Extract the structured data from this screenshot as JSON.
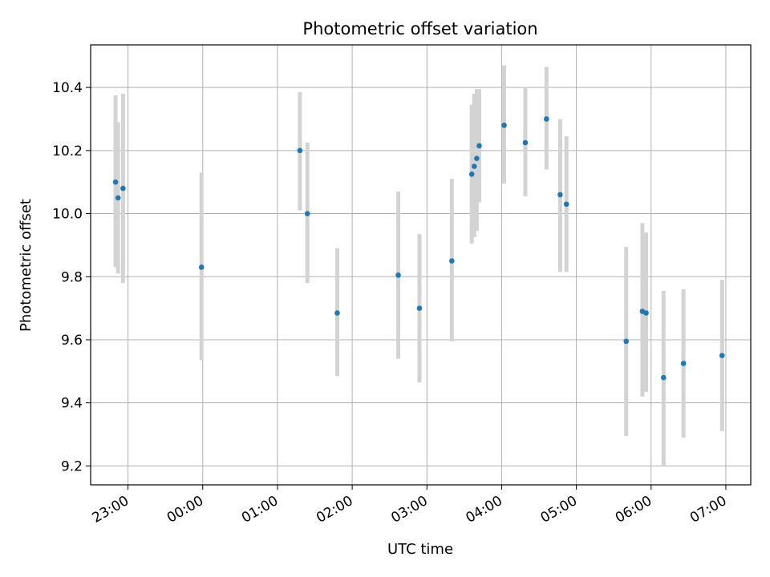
{
  "chart_data": {
    "type": "scatter",
    "title": "Photometric offset variation",
    "xlabel": "UTC time",
    "ylabel": "Photometric offset",
    "x_is_time": true,
    "x_ticks": [
      "23:00",
      "00:00",
      "01:00",
      "02:00",
      "03:00",
      "04:00",
      "05:00",
      "06:00",
      "07:00"
    ],
    "xlim": [
      "22:30",
      "07:20"
    ],
    "y_ticks": [
      "9.2",
      "9.4",
      "9.6",
      "9.8",
      "10.0",
      "10.2",
      "10.4"
    ],
    "ylim": [
      9.14,
      10.535
    ],
    "grid": true,
    "colors": {
      "marker": "#1f77b4",
      "errorbar": "#d3d3d3",
      "grid": "#b0b0b0",
      "axes": "#000000"
    },
    "points": [
      {
        "t": "22:50",
        "y": 10.1,
        "lo": 9.83,
        "hi": 10.375
      },
      {
        "t": "22:52",
        "y": 10.05,
        "lo": 9.81,
        "hi": 10.29
      },
      {
        "t": "22:56",
        "y": 10.08,
        "lo": 9.78,
        "hi": 10.38
      },
      {
        "t": "23:59",
        "y": 9.83,
        "lo": 9.535,
        "hi": 10.13
      },
      {
        "t": "01:18",
        "y": 10.2,
        "lo": 10.01,
        "hi": 10.385
      },
      {
        "t": "01:24",
        "y": 10.0,
        "lo": 9.78,
        "hi": 10.225
      },
      {
        "t": "01:48",
        "y": 9.685,
        "lo": 9.485,
        "hi": 9.89
      },
      {
        "t": "02:37",
        "y": 9.805,
        "lo": 9.54,
        "hi": 10.07
      },
      {
        "t": "02:54",
        "y": 9.7,
        "lo": 9.465,
        "hi": 9.935
      },
      {
        "t": "03:20",
        "y": 9.85,
        "lo": 9.595,
        "hi": 10.11
      },
      {
        "t": "03:36",
        "y": 10.125,
        "lo": 9.905,
        "hi": 10.345
      },
      {
        "t": "03:38",
        "y": 10.15,
        "lo": 9.925,
        "hi": 10.38
      },
      {
        "t": "03:40",
        "y": 10.175,
        "lo": 9.945,
        "hi": 10.395
      },
      {
        "t": "03:42",
        "y": 10.215,
        "lo": 10.035,
        "hi": 10.395
      },
      {
        "t": "04:02",
        "y": 10.28,
        "lo": 10.095,
        "hi": 10.47
      },
      {
        "t": "04:19",
        "y": 10.225,
        "lo": 10.055,
        "hi": 10.4
      },
      {
        "t": "04:36",
        "y": 10.3,
        "lo": 10.14,
        "hi": 10.465
      },
      {
        "t": "04:47",
        "y": 10.06,
        "lo": 9.815,
        "hi": 10.3
      },
      {
        "t": "04:52",
        "y": 10.03,
        "lo": 9.815,
        "hi": 10.245
      },
      {
        "t": "05:40",
        "y": 9.595,
        "lo": 9.295,
        "hi": 9.895
      },
      {
        "t": "05:53",
        "y": 9.69,
        "lo": 9.42,
        "hi": 9.97
      },
      {
        "t": "05:56",
        "y": 9.685,
        "lo": 9.435,
        "hi": 9.94
      },
      {
        "t": "06:10",
        "y": 9.48,
        "lo": 9.2,
        "hi": 9.755
      },
      {
        "t": "06:26",
        "y": 9.525,
        "lo": 9.29,
        "hi": 9.76
      },
      {
        "t": "06:57",
        "y": 9.55,
        "lo": 9.31,
        "hi": 9.79
      }
    ]
  }
}
